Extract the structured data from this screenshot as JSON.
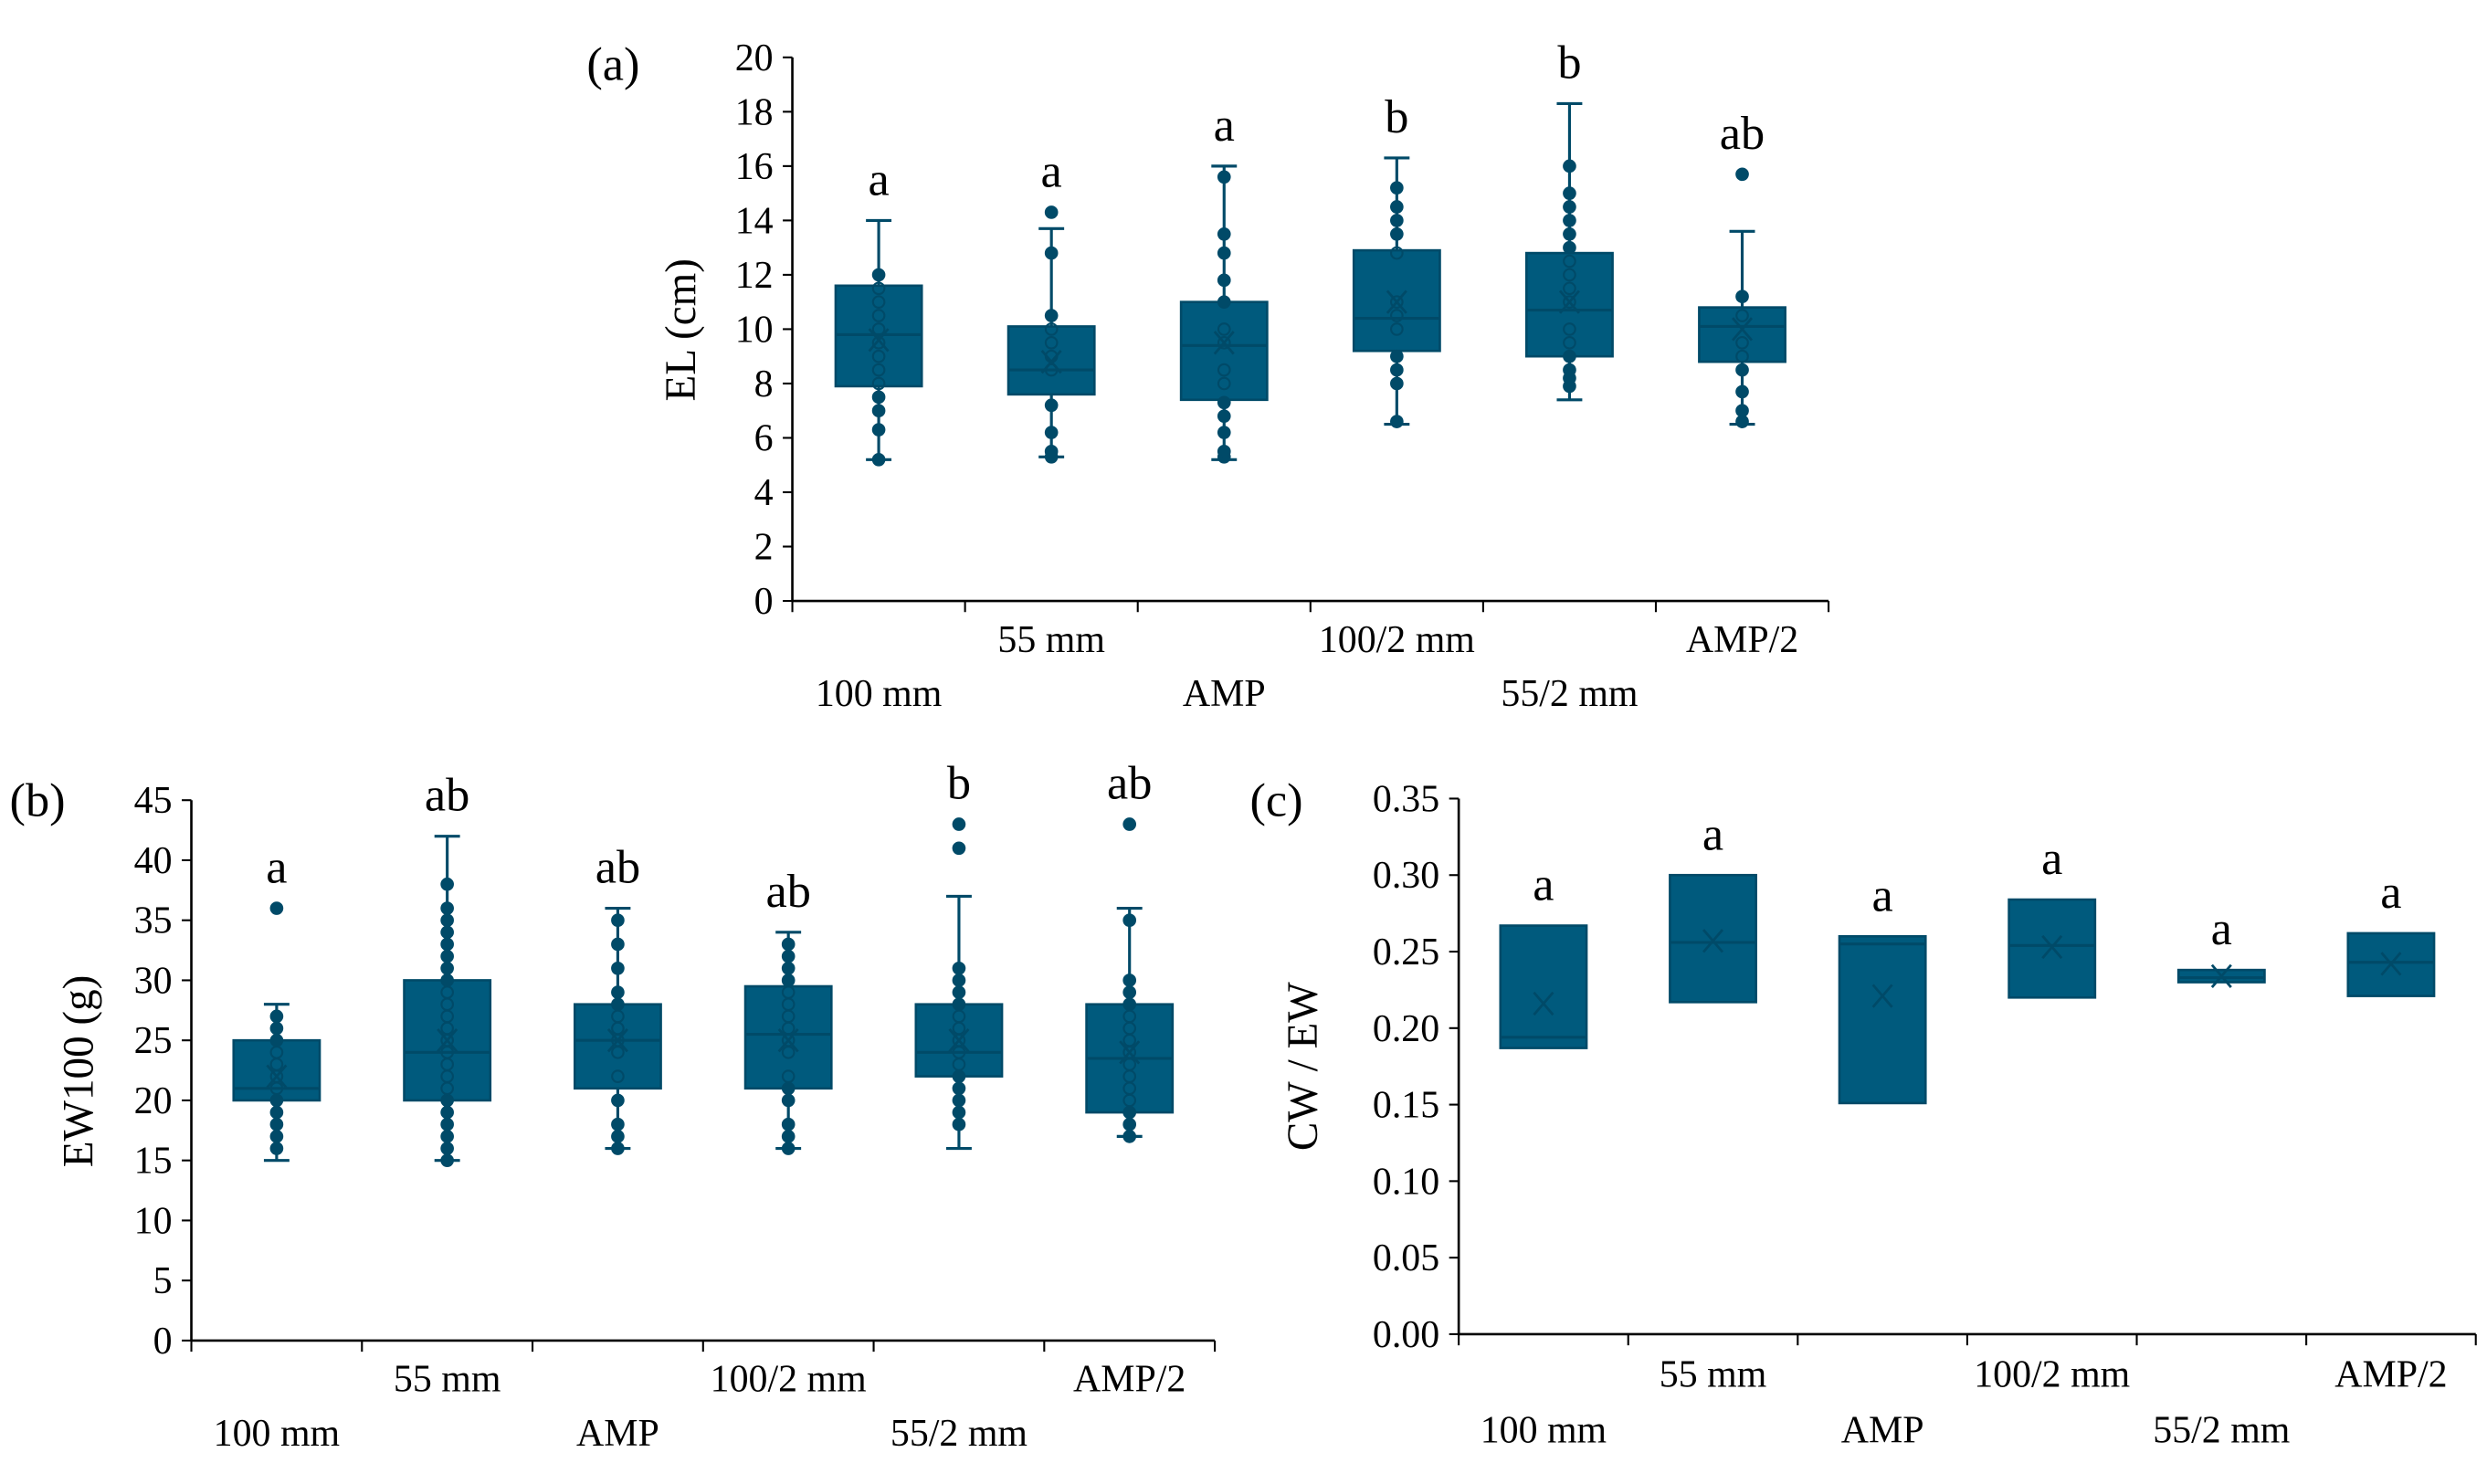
{
  "colors": {
    "box": "#005a7d",
    "line": "#004a68",
    "axis": "#000000"
  },
  "chart_data": [
    {
      "type": "box",
      "panel": "(a)",
      "ylabel": "EL (cm)",
      "ylim": [
        0,
        20
      ],
      "yticks": [
        "0",
        "2",
        "4",
        "6",
        "8",
        "10",
        "12",
        "14",
        "16",
        "18",
        "20"
      ],
      "yticks_values": [
        0,
        2,
        4,
        6,
        8,
        10,
        12,
        14,
        16,
        18,
        20
      ],
      "categories": [
        "100 mm",
        "55 mm",
        "AMP",
        "100/2 mm",
        "55/2 mm",
        "AMP/2"
      ],
      "letters": [
        "a",
        "a",
        "a",
        "b",
        "b",
        "ab"
      ],
      "boxes": [
        {
          "min": 5.2,
          "q1": 7.9,
          "median": 9.8,
          "q3": 11.6,
          "max": 14.0,
          "mean": 9.6,
          "points": [
            5.2,
            6.3,
            7.0,
            7.5,
            8.0,
            8.5,
            9.0,
            9.5,
            10.0,
            10.5,
            11.0,
            11.5,
            12.0
          ]
        },
        {
          "min": 5.3,
          "q1": 7.6,
          "median": 8.5,
          "q3": 10.1,
          "max": 13.7,
          "mean": 8.8,
          "points": [
            5.3,
            5.5,
            6.2,
            7.2,
            8.5,
            9.0,
            9.5,
            10.0,
            10.5,
            12.8,
            14.3
          ]
        },
        {
          "min": 5.2,
          "q1": 7.4,
          "median": 9.4,
          "q3": 11.0,
          "max": 16.0,
          "mean": 9.5,
          "points": [
            5.3,
            5.5,
            6.2,
            6.8,
            7.3,
            8.0,
            8.5,
            9.5,
            10.0,
            11.0,
            11.8,
            12.8,
            13.5,
            15.6
          ]
        },
        {
          "min": 6.5,
          "q1": 9.2,
          "median": 10.4,
          "q3": 12.9,
          "max": 16.3,
          "mean": 11.0,
          "points": [
            6.6,
            8.0,
            8.5,
            9.0,
            10.0,
            10.5,
            11.0,
            12.8,
            13.5,
            14.0,
            14.5,
            15.2
          ]
        },
        {
          "min": 7.4,
          "q1": 9.0,
          "median": 10.7,
          "q3": 12.8,
          "max": 18.3,
          "mean": 11.0,
          "points": [
            7.9,
            8.2,
            8.5,
            9.0,
            9.5,
            10.0,
            11.0,
            11.5,
            12.0,
            12.5,
            13.0,
            13.5,
            14.0,
            14.5,
            15.0,
            16.0
          ]
        },
        {
          "min": 6.5,
          "q1": 8.8,
          "median": 10.1,
          "q3": 10.8,
          "max": 13.6,
          "mean": 10.0,
          "points": [
            6.6,
            7.0,
            7.7,
            8.5,
            9.0,
            9.5,
            10.5,
            11.2,
            15.7
          ]
        }
      ]
    },
    {
      "type": "box",
      "panel": "(b)",
      "ylabel": "EW100 (g)",
      "ylim": [
        0,
        45
      ],
      "yticks": [
        "0",
        "5",
        "10",
        "15",
        "20",
        "25",
        "30",
        "35",
        "40",
        "45"
      ],
      "yticks_values": [
        0,
        5,
        10,
        15,
        20,
        25,
        30,
        35,
        40,
        45
      ],
      "categories": [
        "100 mm",
        "55 mm",
        "AMP",
        "100/2 mm",
        "55/2 mm",
        "AMP/2"
      ],
      "letters": [
        "a",
        "ab",
        "ab",
        "ab",
        "b",
        "ab"
      ],
      "boxes": [
        {
          "min": 15,
          "q1": 20,
          "median": 21,
          "q3": 25,
          "max": 28,
          "mean": 22,
          "points": [
            16,
            17,
            18,
            19,
            20,
            21,
            22,
            23,
            24,
            25,
            26,
            27,
            36
          ]
        },
        {
          "min": 15,
          "q1": 20,
          "median": 24,
          "q3": 30,
          "max": 42,
          "mean": 25,
          "points": [
            15,
            16,
            17,
            18,
            19,
            20,
            21,
            22,
            23,
            24,
            25,
            26,
            27,
            28,
            29,
            30,
            31,
            32,
            33,
            34,
            35,
            36,
            38
          ]
        },
        {
          "min": 16,
          "q1": 21,
          "median": 25,
          "q3": 28,
          "max": 36,
          "mean": 25,
          "points": [
            16,
            17,
            18,
            20,
            22,
            24,
            25,
            26,
            27,
            28,
            29,
            31,
            33,
            35
          ]
        },
        {
          "min": 16,
          "q1": 21,
          "median": 25.5,
          "q3": 29.5,
          "max": 34,
          "mean": 25,
          "points": [
            16,
            17,
            18,
            20,
            21,
            22,
            24,
            25,
            26,
            27,
            28,
            29,
            30,
            31,
            32,
            33
          ]
        },
        {
          "min": 16,
          "q1": 22,
          "median": 24,
          "q3": 28,
          "max": 37,
          "mean": 25,
          "points": [
            18,
            19,
            20,
            21,
            22,
            23,
            24,
            25,
            26,
            27,
            28,
            29,
            30,
            31,
            41,
            43
          ]
        },
        {
          "min": 17,
          "q1": 19,
          "median": 23.5,
          "q3": 28,
          "max": 36,
          "mean": 24,
          "points": [
            17,
            18,
            19,
            20,
            21,
            22,
            23,
            24,
            25,
            26,
            27,
            28,
            29,
            30,
            35,
            43
          ]
        }
      ]
    },
    {
      "type": "box",
      "panel": "(c)",
      "ylabel": "CW / EW",
      "ylim": [
        0,
        0.35
      ],
      "yticks": [
        "0.00",
        "0.05",
        "0.10",
        "0.15",
        "0.20",
        "0.25",
        "0.30",
        "0.35"
      ],
      "yticks_values": [
        0,
        0.05,
        0.1,
        0.15,
        0.2,
        0.25,
        0.3,
        0.35
      ],
      "categories": [
        "100 mm",
        "55 mm",
        "AMP",
        "100/2 mm",
        "55/2 mm",
        "AMP/2"
      ],
      "letters": [
        "a",
        "a",
        "a",
        "a",
        "a",
        "a"
      ],
      "boxes": [
        {
          "q1": 0.187,
          "median": 0.194,
          "q3": 0.267,
          "mean": 0.216,
          "points": []
        },
        {
          "q1": 0.217,
          "median": 0.256,
          "q3": 0.3,
          "mean": 0.257,
          "points": []
        },
        {
          "q1": 0.151,
          "median": 0.255,
          "q3": 0.26,
          "mean": 0.221,
          "points": []
        },
        {
          "q1": 0.22,
          "median": 0.254,
          "q3": 0.284,
          "mean": 0.253,
          "points": []
        },
        {
          "q1": 0.23,
          "median": 0.233,
          "q3": 0.238,
          "mean": 0.234,
          "points": []
        },
        {
          "q1": 0.221,
          "median": 0.243,
          "q3": 0.262,
          "mean": 0.242,
          "points": []
        }
      ]
    }
  ]
}
